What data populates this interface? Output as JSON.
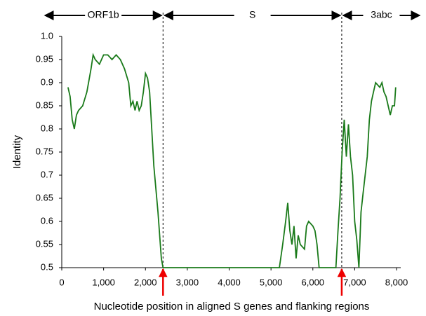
{
  "chart_data": {
    "type": "line",
    "x_label": "Nucleotide position in aligned S genes and flanking regions",
    "y_label": "Identity",
    "regions": [
      "ORF1b",
      "S",
      "3abc"
    ],
    "boundaries": [
      2420,
      6690
    ],
    "xlim": [
      0,
      8100
    ],
    "ylim": [
      0.5,
      1.0
    ],
    "xticks": [
      0,
      {
        "value": 1000,
        "label": "1,000"
      },
      {
        "value": 2000,
        "label": "2,000"
      },
      {
        "value": 3000,
        "label": "3,000"
      },
      {
        "value": 4000,
        "label": "4,000"
      },
      {
        "value": 5000,
        "label": "5,000"
      },
      {
        "value": 6000,
        "label": "6,000"
      },
      {
        "value": 7000,
        "label": "7,000"
      },
      {
        "value": 8000,
        "label": "8,000"
      }
    ],
    "yticks": [
      0.5,
      0.55,
      0.6,
      0.65,
      0.7,
      0.75,
      0.8,
      0.85,
      0.9,
      0.95,
      {
        "value": 1.0,
        "label": "1.0"
      }
    ],
    "series": [
      {
        "color": "#1a7a1a",
        "x": [
          150,
          200,
          250,
          300,
          350,
          400,
          500,
          600,
          700,
          750,
          800,
          900,
          1000,
          1100,
          1200,
          1300,
          1400,
          1500,
          1600,
          1650,
          1700,
          1750,
          1800,
          1850,
          1900,
          1950,
          2000,
          2050,
          2100,
          2150,
          2200,
          2300,
          2380,
          2420,
          3000,
          4000,
          5200,
          5280,
          5350,
          5400,
          5450,
          5500,
          5550,
          5600,
          5650,
          5700,
          5800,
          5850,
          5900,
          6000,
          6050,
          6100,
          6150,
          6550,
          6600,
          6650,
          6700,
          6750,
          6800,
          6850,
          6900,
          6950,
          7000,
          7050,
          7100,
          7150,
          7200,
          7300,
          7350,
          7400,
          7450,
          7500,
          7600,
          7650,
          7700,
          7750,
          7800,
          7850,
          7900,
          7950,
          7980
        ],
        "values": [
          0.89,
          0.87,
          0.82,
          0.8,
          0.83,
          0.84,
          0.85,
          0.88,
          0.93,
          0.96,
          0.95,
          0.94,
          0.96,
          0.96,
          0.95,
          0.96,
          0.95,
          0.93,
          0.9,
          0.85,
          0.86,
          0.84,
          0.86,
          0.84,
          0.85,
          0.88,
          0.92,
          0.91,
          0.88,
          0.8,
          0.72,
          0.62,
          0.52,
          0.5,
          0.5,
          0.5,
          0.5,
          0.55,
          0.6,
          0.64,
          0.58,
          0.55,
          0.59,
          0.52,
          0.57,
          0.55,
          0.54,
          0.59,
          0.6,
          0.59,
          0.58,
          0.55,
          0.5,
          0.5,
          0.58,
          0.65,
          0.75,
          0.82,
          0.74,
          0.81,
          0.74,
          0.7,
          0.6,
          0.56,
          0.5,
          0.62,
          0.66,
          0.74,
          0.82,
          0.86,
          0.88,
          0.9,
          0.89,
          0.9,
          0.88,
          0.87,
          0.85,
          0.83,
          0.85,
          0.85,
          0.89
        ]
      }
    ]
  }
}
